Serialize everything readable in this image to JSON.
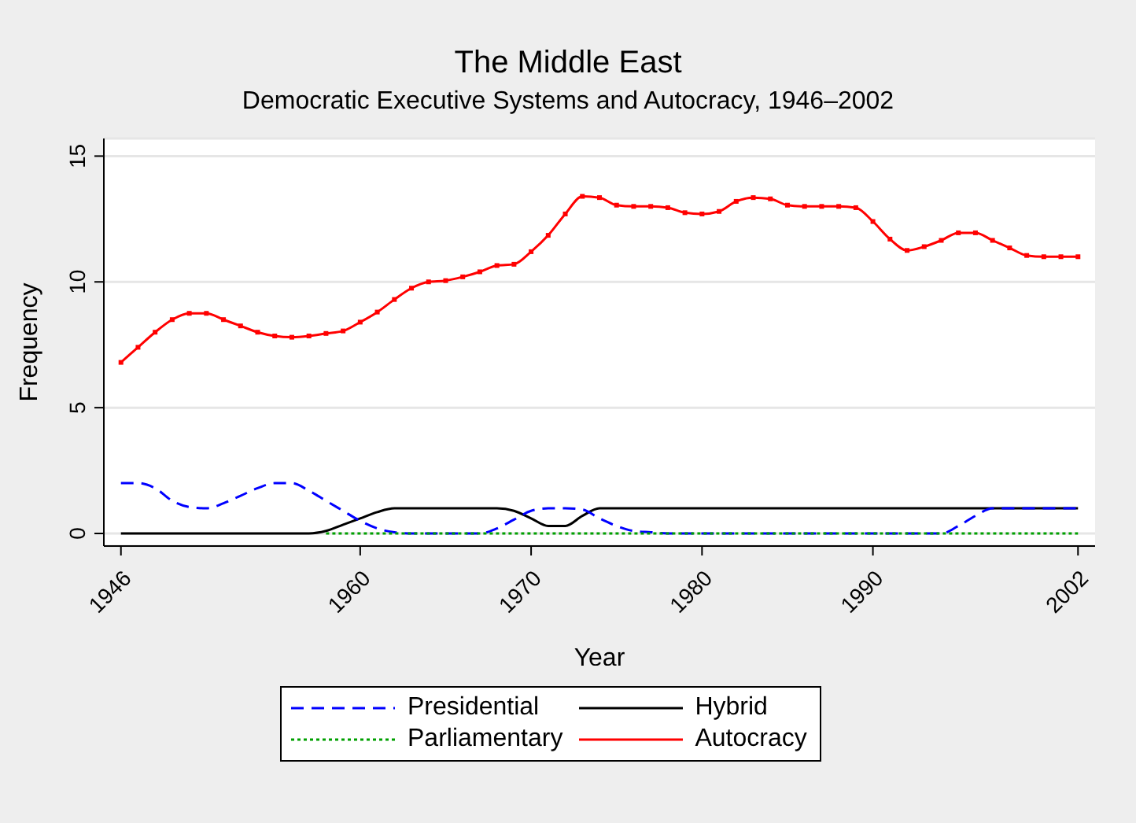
{
  "chart_data": {
    "type": "line",
    "title": "The Middle East",
    "subtitle": "Democratic Executive Systems and Autocracy, 1946–2002",
    "xlabel": "Year",
    "ylabel": "Frequency",
    "x": [
      1946,
      1947,
      1948,
      1949,
      1950,
      1951,
      1952,
      1953,
      1954,
      1955,
      1956,
      1957,
      1958,
      1959,
      1960,
      1961,
      1962,
      1963,
      1964,
      1965,
      1966,
      1967,
      1968,
      1969,
      1970,
      1971,
      1972,
      1973,
      1974,
      1975,
      1976,
      1977,
      1978,
      1979,
      1980,
      1981,
      1982,
      1983,
      1984,
      1985,
      1986,
      1987,
      1988,
      1989,
      1990,
      1991,
      1992,
      1993,
      1994,
      1995,
      1996,
      1997,
      1998,
      1999,
      2000,
      2001,
      2002
    ],
    "series": [
      {
        "name": "Presidential",
        "color": "#0000ff",
        "line_style": "dashed",
        "marker": "none",
        "values": [
          2,
          2,
          1.8,
          1.3,
          1.05,
          1,
          1.2,
          1.5,
          1.8,
          2,
          2,
          1.7,
          1.3,
          0.9,
          0.5,
          0.2,
          0.05,
          0,
          0,
          0,
          0,
          0,
          0.2,
          0.55,
          0.9,
          1,
          1,
          0.95,
          0.6,
          0.3,
          0.1,
          0.05,
          0,
          0,
          0,
          0,
          0,
          0,
          0,
          0,
          0,
          0,
          0,
          0,
          0,
          0,
          0,
          0,
          0,
          0.3,
          0.7,
          1,
          1,
          1,
          1,
          1,
          1
        ]
      },
      {
        "name": "Parliamentary",
        "color": "#00a000",
        "line_style": "dotted",
        "marker": "none",
        "values": [
          null,
          null,
          null,
          null,
          null,
          null,
          null,
          null,
          null,
          null,
          null,
          null,
          0,
          0,
          0,
          0,
          0,
          0,
          0,
          0,
          0,
          0,
          0,
          0,
          0,
          0,
          0,
          0,
          0,
          0,
          0,
          0,
          0,
          0,
          0,
          0,
          0,
          0,
          0,
          0,
          0,
          0,
          0,
          0,
          0,
          0,
          0,
          0,
          0,
          0,
          0,
          0,
          0,
          0,
          0,
          0,
          0
        ]
      },
      {
        "name": "Hybrid",
        "color": "#000000",
        "line_style": "solid",
        "marker": "none",
        "values": [
          0,
          0,
          0,
          0,
          0,
          0,
          0,
          0,
          0,
          0,
          0,
          0,
          0.1,
          0.35,
          0.6,
          0.85,
          1,
          1,
          1,
          1,
          1,
          1,
          1,
          0.9,
          0.6,
          0.3,
          0.3,
          0.7,
          1,
          1,
          1,
          1,
          1,
          1,
          1,
          1,
          1,
          1,
          1,
          1,
          1,
          1,
          1,
          1,
          1,
          1,
          1,
          1,
          1,
          1,
          1,
          1,
          1,
          1,
          1,
          1,
          1
        ]
      },
      {
        "name": "Autocracy",
        "color": "#ff0000",
        "line_style": "solid",
        "marker": "square",
        "values": [
          6.8,
          7.4,
          8,
          8.5,
          8.75,
          8.75,
          8.5,
          8.25,
          8,
          7.85,
          7.8,
          7.85,
          7.95,
          8.05,
          8.4,
          8.8,
          9.3,
          9.75,
          10,
          10.05,
          10.2,
          10.4,
          10.65,
          10.7,
          11.2,
          11.85,
          12.7,
          13.4,
          13.35,
          13.05,
          13,
          13,
          12.95,
          12.75,
          12.7,
          12.8,
          13.2,
          13.35,
          13.3,
          13.05,
          13,
          13,
          13,
          12.95,
          12.4,
          11.7,
          11.25,
          11.4,
          11.65,
          11.95,
          11.95,
          11.65,
          11.35,
          11.05,
          11,
          11,
          11
        ]
      }
    ],
    "xlim": [
      1945,
      2003
    ],
    "xticks": [
      1946,
      1960,
      1970,
      1980,
      1990,
      2002
    ],
    "ylim": [
      -0.5,
      15.7
    ],
    "yticks": [
      0,
      5,
      10,
      15
    ],
    "grid": "y",
    "legend": "bottom"
  }
}
